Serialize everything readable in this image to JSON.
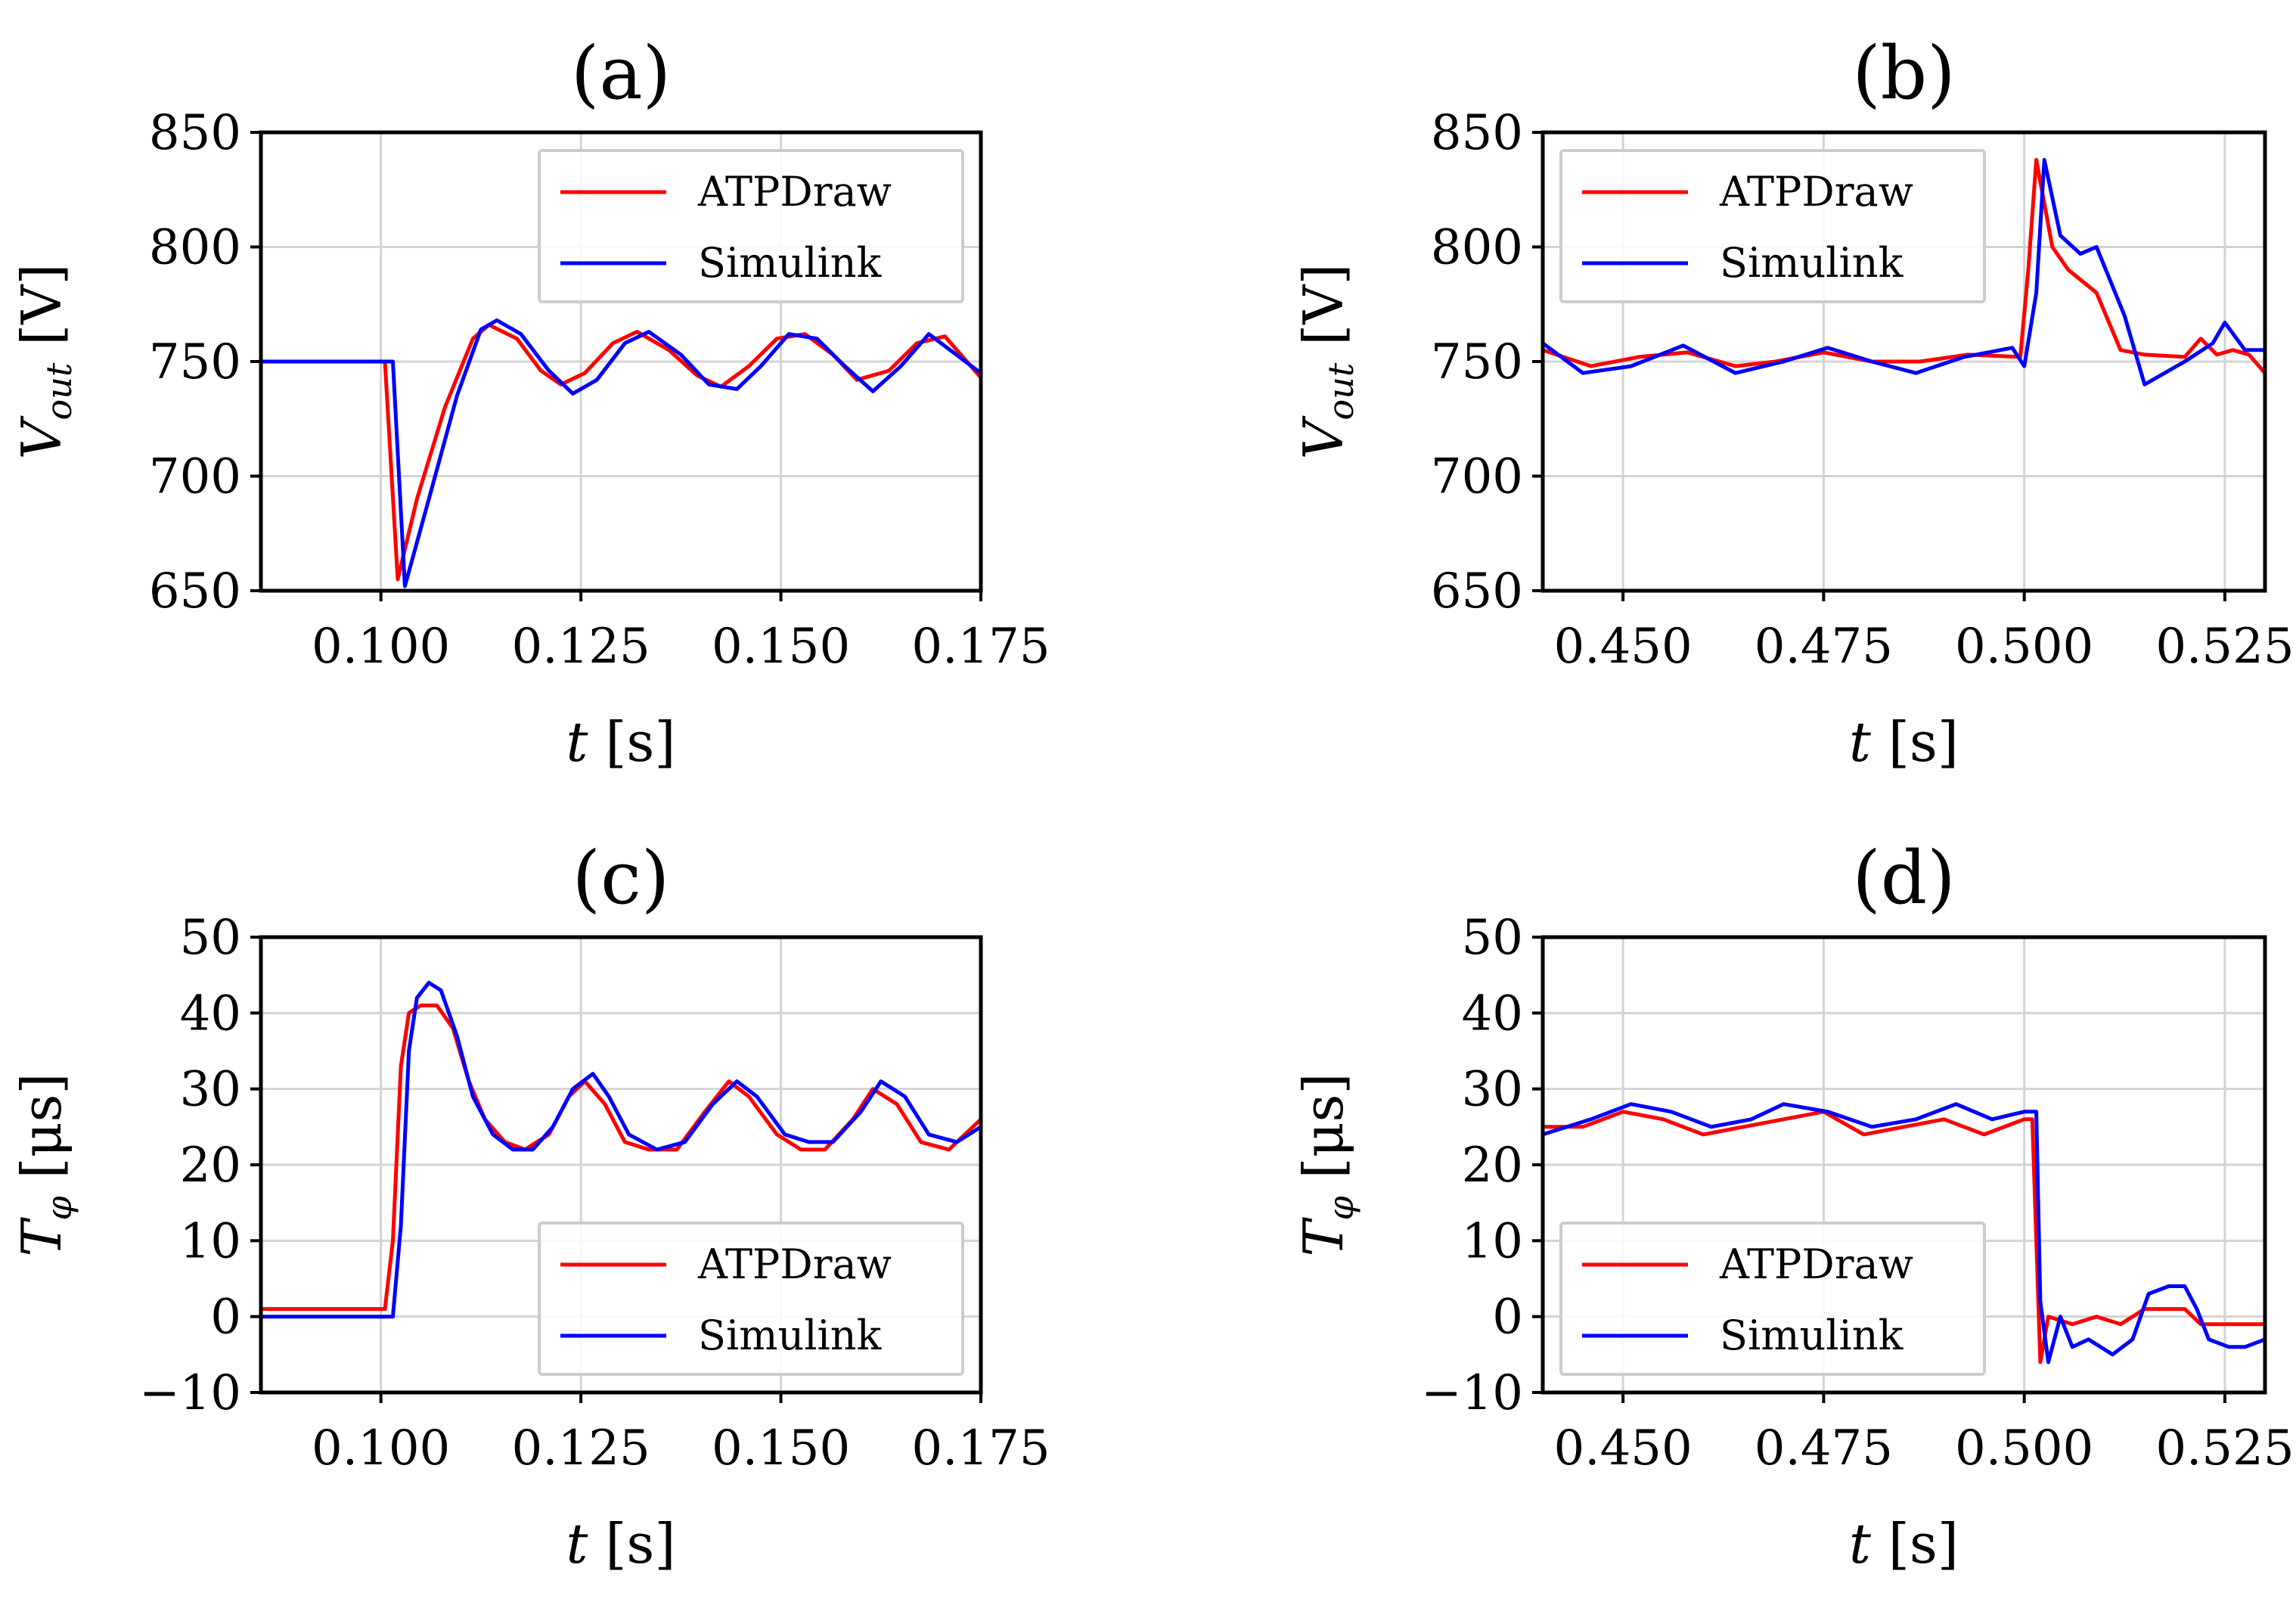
{
  "chart_data": [
    {
      "type": "line",
      "title": "(a)",
      "xlabel": {
        "var": "t",
        "unit": " [s]"
      },
      "ylabel": {
        "var": "V",
        "sub": "out",
        "unit": " [V]"
      },
      "xlim": [
        0.085,
        0.175
      ],
      "ylim": [
        650,
        850
      ],
      "xticks": [
        "0.100",
        "0.125",
        "0.150",
        "0.175"
      ],
      "xtick_values": [
        0.1,
        0.125,
        0.15,
        0.175
      ],
      "yticks": [
        "650",
        "700",
        "750",
        "800",
        "850"
      ],
      "ytick_values": [
        650,
        700,
        750,
        800,
        850
      ],
      "legend_location": "upper right",
      "grid": true,
      "series": [
        {
          "name": "ATPDraw",
          "color": "#ff0000",
          "x": [
            0.085,
            0.1005,
            0.1021,
            0.1045,
            0.108,
            0.1115,
            0.1135,
            0.117,
            0.12,
            0.1225,
            0.1255,
            0.129,
            0.132,
            0.136,
            0.1395,
            0.1425,
            0.146,
            0.1495,
            0.153,
            0.1565,
            0.1595,
            0.1635,
            0.167,
            0.1705,
            0.175
          ],
          "y": [
            750,
            750,
            655,
            690,
            730,
            760,
            766,
            760,
            746,
            740,
            745,
            758,
            763,
            755,
            744,
            739,
            748,
            760,
            762,
            753,
            742,
            746,
            758,
            761,
            743
          ]
        },
        {
          "name": "Simulink",
          "color": "#0000ff",
          "x": [
            0.085,
            0.1015,
            0.103,
            0.106,
            0.1095,
            0.1125,
            0.1145,
            0.1175,
            0.121,
            0.124,
            0.127,
            0.1305,
            0.1335,
            0.1375,
            0.141,
            0.1445,
            0.1475,
            0.151,
            0.1545,
            0.158,
            0.1615,
            0.165,
            0.1685,
            0.175
          ],
          "y": [
            750,
            750,
            652,
            690,
            735,
            764,
            768,
            762,
            746,
            736,
            742,
            758,
            763,
            753,
            740,
            738,
            748,
            762,
            760,
            748,
            737,
            748,
            762,
            745
          ]
        }
      ]
    },
    {
      "type": "line",
      "title": "(b)",
      "xlabel": {
        "var": "t",
        "unit": " [s]"
      },
      "ylabel": {
        "var": "V",
        "sub": "out",
        "unit": " [V]"
      },
      "xlim": [
        0.44,
        0.53
      ],
      "ylim": [
        650,
        850
      ],
      "xticks": [
        "0.450",
        "0.475",
        "0.500",
        "0.525"
      ],
      "xtick_values": [
        0.45,
        0.475,
        0.5,
        0.525
      ],
      "yticks": [
        "650",
        "700",
        "750",
        "800",
        "850"
      ],
      "ytick_values": [
        650,
        700,
        750,
        800,
        850
      ],
      "legend_location": "upper left",
      "grid": true,
      "series": [
        {
          "name": "ATPDraw",
          "color": "#ff0000",
          "x": [
            0.44,
            0.446,
            0.452,
            0.458,
            0.464,
            0.469,
            0.475,
            0.481,
            0.487,
            0.493,
            0.4995,
            0.5005,
            0.5015,
            0.5035,
            0.5055,
            0.509,
            0.512,
            0.515,
            0.52,
            0.522,
            0.524,
            0.526,
            0.528,
            0.53
          ],
          "y": [
            755,
            748,
            752,
            754,
            748,
            750,
            754,
            750,
            750,
            753,
            752,
            790,
            838,
            800,
            790,
            780,
            755,
            753,
            752,
            760,
            753,
            755,
            753,
            745
          ]
        },
        {
          "name": "Simulink",
          "color": "#0000ff",
          "x": [
            0.44,
            0.445,
            0.451,
            0.4575,
            0.464,
            0.47,
            0.4755,
            0.481,
            0.4865,
            0.4925,
            0.4985,
            0.5,
            0.5015,
            0.5025,
            0.5045,
            0.507,
            0.509,
            0.5125,
            0.515,
            0.52,
            0.5235,
            0.525,
            0.5275,
            0.53
          ],
          "y": [
            758,
            745,
            748,
            757,
            745,
            750,
            756,
            750,
            745,
            752,
            756,
            748,
            780,
            838,
            805,
            797,
            800,
            770,
            740,
            750,
            758,
            767,
            755,
            755
          ]
        }
      ]
    },
    {
      "type": "line",
      "title": "(c)",
      "xlabel": {
        "var": "t",
        "unit": " [s]"
      },
      "ylabel": {
        "var": "T",
        "sub": "φ",
        "unit": " [μs]"
      },
      "xlim": [
        0.085,
        0.175
      ],
      "ylim": [
        -10,
        50
      ],
      "xticks": [
        "0.100",
        "0.125",
        "0.150",
        "0.175"
      ],
      "xtick_values": [
        0.1,
        0.125,
        0.15,
        0.175
      ],
      "yticks": [
        "−10",
        "0",
        "10",
        "20",
        "30",
        "40",
        "50"
      ],
      "ytick_values": [
        -10,
        0,
        10,
        20,
        30,
        40,
        50
      ],
      "legend_location": "lower right",
      "grid": true,
      "series": [
        {
          "name": "ATPDraw",
          "color": "#ff0000",
          "x": [
            0.085,
            0.1005,
            0.1015,
            0.1025,
            0.1035,
            0.105,
            0.107,
            0.109,
            0.111,
            0.113,
            0.1155,
            0.118,
            0.121,
            0.1235,
            0.1255,
            0.128,
            0.1305,
            0.1335,
            0.137,
            0.1405,
            0.1435,
            0.146,
            0.1495,
            0.1525,
            0.1555,
            0.159,
            0.1615,
            0.1645,
            0.1675,
            0.171,
            0.175
          ],
          "y": [
            1,
            1,
            10,
            33,
            40,
            41,
            41,
            38,
            31,
            26,
            23,
            22,
            24,
            29,
            31,
            28,
            23,
            22,
            22,
            27,
            31,
            29,
            24,
            22,
            22,
            26,
            30,
            28,
            23,
            22,
            26
          ]
        },
        {
          "name": "Simulink",
          "color": "#0000ff",
          "x": [
            0.085,
            0.1015,
            0.1025,
            0.1035,
            0.1045,
            0.106,
            0.1075,
            0.1095,
            0.1115,
            0.114,
            0.1165,
            0.119,
            0.1215,
            0.124,
            0.1265,
            0.1285,
            0.131,
            0.1345,
            0.138,
            0.1415,
            0.1445,
            0.147,
            0.1505,
            0.1535,
            0.1565,
            0.16,
            0.1625,
            0.1655,
            0.1685,
            0.172,
            0.175
          ],
          "y": [
            0,
            0,
            12,
            35,
            42,
            44,
            43,
            37,
            29,
            24,
            22,
            22,
            25,
            30,
            32,
            29,
            24,
            22,
            23,
            28,
            31,
            29,
            24,
            23,
            23,
            27,
            31,
            29,
            24,
            23,
            25
          ]
        }
      ]
    },
    {
      "type": "line",
      "title": "(d)",
      "xlabel": {
        "var": "t",
        "unit": " [s]"
      },
      "ylabel": {
        "var": "T",
        "sub": "φ",
        "unit": " [μs]"
      },
      "xlim": [
        0.44,
        0.53
      ],
      "ylim": [
        -10,
        50
      ],
      "xticks": [
        "0.450",
        "0.475",
        "0.500",
        "0.525"
      ],
      "xtick_values": [
        0.45,
        0.475,
        0.5,
        0.525
      ],
      "yticks": [
        "−10",
        "0",
        "10",
        "20",
        "30",
        "40",
        "50"
      ],
      "ytick_values": [
        -10,
        0,
        10,
        20,
        30,
        40,
        50
      ],
      "legend_location": "lower left",
      "grid": true,
      "series": [
        {
          "name": "ATPDraw",
          "color": "#ff0000",
          "x": [
            0.44,
            0.445,
            0.45,
            0.455,
            0.46,
            0.465,
            0.47,
            0.475,
            0.48,
            0.485,
            0.49,
            0.495,
            0.5,
            0.501,
            0.5015,
            0.502,
            0.503,
            0.506,
            0.509,
            0.512,
            0.515,
            0.52,
            0.522,
            0.525,
            0.53
          ],
          "y": [
            25,
            25,
            27,
            26,
            24,
            25,
            26,
            27,
            24,
            25,
            26,
            24,
            26,
            26,
            10,
            -6,
            0,
            -1,
            0,
            -1,
            1,
            1,
            -1,
            -1,
            -1
          ]
        },
        {
          "name": "Simulink",
          "color": "#0000ff",
          "x": [
            0.44,
            0.446,
            0.451,
            0.456,
            0.461,
            0.466,
            0.47,
            0.4755,
            0.481,
            0.4865,
            0.4915,
            0.496,
            0.5,
            0.5015,
            0.502,
            0.503,
            0.5045,
            0.506,
            0.508,
            0.511,
            0.5135,
            0.5155,
            0.518,
            0.52,
            0.5215,
            0.523,
            0.5255,
            0.5275,
            0.53
          ],
          "y": [
            24,
            26,
            28,
            27,
            25,
            26,
            28,
            27,
            25,
            26,
            28,
            26,
            27,
            27,
            2,
            -6,
            0,
            -4,
            -3,
            -5,
            -3,
            3,
            4,
            4,
            1,
            -3,
            -4,
            -4,
            -3
          ]
        }
      ]
    }
  ]
}
